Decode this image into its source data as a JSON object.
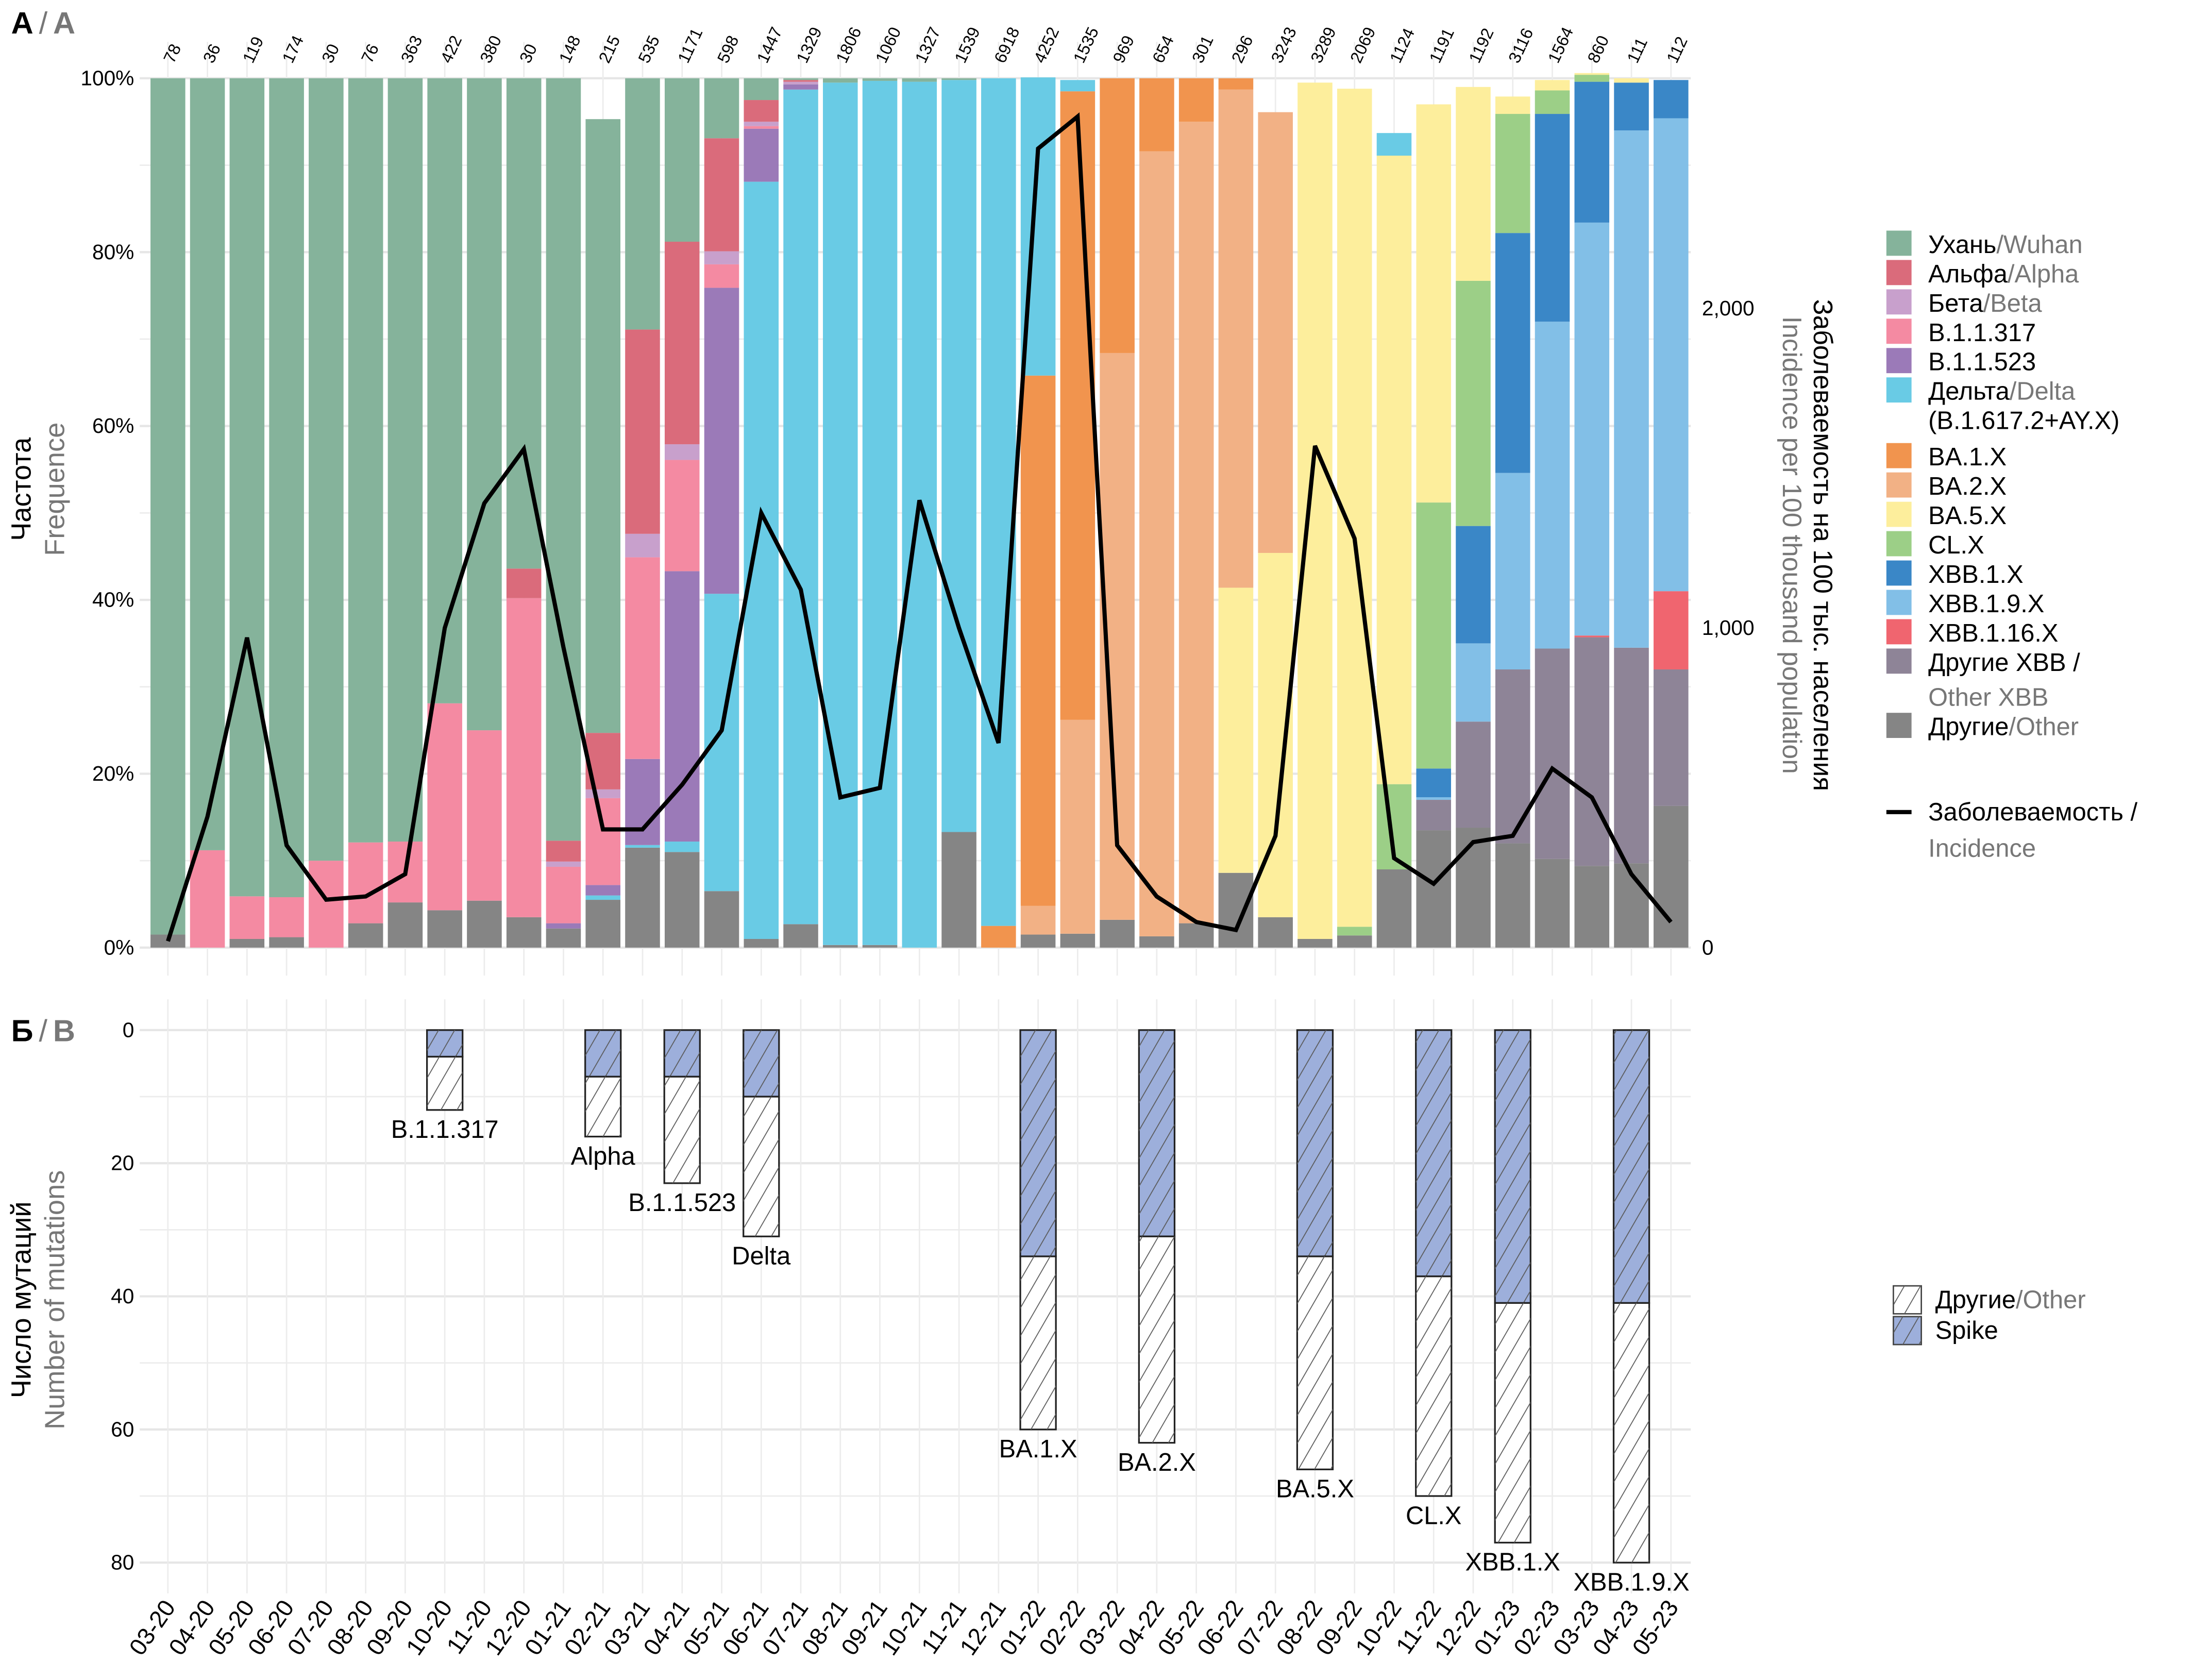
{
  "chart_data": [
    {
      "panel_label": {
        "ru": "А",
        "en": "A"
      },
      "type": "bar",
      "stacked": true,
      "normalized": true,
      "categories": [
        "03-20",
        "04-20",
        "05-20",
        "06-20",
        "07-20",
        "08-20",
        "09-20",
        "10-20",
        "11-20",
        "12-20",
        "01-21",
        "02-21",
        "03-21",
        "04-21",
        "05-21",
        "06-21",
        "07-21",
        "08-21",
        "09-21",
        "10-21",
        "11-21",
        "12-21",
        "01-22",
        "02-22",
        "03-22",
        "04-22",
        "05-22",
        "06-22",
        "07-22",
        "08-22",
        "09-22",
        "10-22",
        "11-22",
        "12-22",
        "01-23",
        "02-23",
        "03-23",
        "04-23",
        "05-23"
      ],
      "sample_counts": [
        78,
        36,
        119,
        174,
        30,
        76,
        363,
        422,
        380,
        30,
        148,
        215,
        535,
        1171,
        598,
        1447,
        1329,
        1806,
        1060,
        1327,
        1539,
        6918,
        4252,
        1535,
        969,
        654,
        301,
        296,
        3243,
        3289,
        2069,
        1124,
        1191,
        1192,
        3116,
        1564,
        860,
        111,
        112
      ],
      "ylabel": {
        "ru": "Частота",
        "en": "Frequence"
      },
      "y_ticks": [
        "0%",
        "20%",
        "40%",
        "60%",
        "80%",
        "100%"
      ],
      "ylim": [
        0,
        100
      ],
      "y2label": {
        "ru": "Заболеваемость на 100 тыс. населения",
        "en": "Incidence per 100 thousand population"
      },
      "y2_ticks": [
        "0",
        "1,000",
        "2,000"
      ],
      "y2lim": [
        0,
        2720
      ],
      "legend_position": "right",
      "series": [
        {
          "key": "other",
          "name_ru": "Другие",
          "name_en": "Other",
          "color": "#858585",
          "values": [
            1.5,
            0,
            1,
            1.2,
            0,
            2.8,
            5.2,
            4.3,
            5.4,
            3.5,
            2.2,
            5.5,
            11.5,
            11,
            6.5,
            1,
            2.7,
            0.3,
            0.3,
            0,
            13.3,
            0,
            1.5,
            1.6,
            3.2,
            1.3,
            2.8,
            8.6,
            3.5,
            1,
            1.4,
            9,
            13.5,
            13.8,
            12,
            10.2,
            9.4,
            9.7,
            16.3
          ]
        },
        {
          "key": "other_xbb",
          "name_ru": "Другие XBB /",
          "name_en": "Other XBB",
          "color": "#8e8497",
          "values": [
            0,
            0,
            0,
            0,
            0,
            0,
            0,
            0,
            0,
            0,
            0,
            0,
            0,
            0,
            0,
            0,
            0,
            0,
            0,
            0,
            0,
            0,
            0,
            0,
            0,
            0,
            0,
            0,
            0,
            0,
            0,
            0,
            3.5,
            12.2,
            20,
            24.2,
            26.3,
            24.8,
            15.7
          ]
        },
        {
          "key": "xbb116",
          "name_ru": "XBB.1.16.X",
          "name_en": "",
          "color": "#f0656f",
          "values": [
            0,
            0,
            0,
            0,
            0,
            0,
            0,
            0,
            0,
            0,
            0,
            0,
            0,
            0,
            0,
            0,
            0,
            0,
            0,
            0,
            0,
            0,
            0,
            0,
            0,
            0,
            0,
            0,
            0,
            0,
            0,
            0,
            0,
            0,
            0,
            0,
            0.2,
            0,
            9
          ]
        },
        {
          "key": "xbb19",
          "name_ru": "XBB.1.9.X",
          "name_en": "",
          "color": "#82bfe7",
          "values": [
            0,
            0,
            0,
            0,
            0,
            0,
            0,
            0,
            0,
            0,
            0,
            0,
            0,
            0,
            0,
            0,
            0,
            0,
            0,
            0,
            0,
            0,
            0,
            0,
            0,
            0,
            0,
            0,
            0,
            0,
            0,
            0,
            0.3,
            9,
            22.6,
            37.6,
            47.5,
            59.5,
            54.4
          ]
        },
        {
          "key": "xbb1",
          "name_ru": "XBB.1.X",
          "name_en": "",
          "color": "#3a87c7",
          "values": [
            0,
            0,
            0,
            0,
            0,
            0,
            0,
            0,
            0,
            0,
            0,
            0,
            0,
            0,
            0,
            0,
            0,
            0,
            0,
            0,
            0,
            0,
            0,
            0,
            0,
            0,
            0,
            0,
            0,
            0,
            0,
            0,
            3.3,
            13.5,
            27.6,
            23.9,
            16.2,
            5.5,
            4.4
          ]
        },
        {
          "key": "cl",
          "name_ru": "CL.X",
          "name_en": "",
          "color": "#9ccf87",
          "values": [
            0,
            0,
            0,
            0,
            0,
            0,
            0,
            0,
            0,
            0,
            0,
            0,
            0,
            0,
            0,
            0,
            0,
            0,
            0,
            0,
            0,
            0,
            0,
            0,
            0,
            0,
            0,
            0,
            0,
            0,
            1,
            9.8,
            30.6,
            28.2,
            13.7,
            2.7,
            0.8,
            0,
            0
          ]
        },
        {
          "key": "ba5",
          "name_ru": "BA.5.X",
          "name_en": "",
          "color": "#fdee9c",
          "values": [
            0,
            0,
            0,
            0,
            0,
            0,
            0,
            0,
            0,
            0,
            0,
            0,
            0,
            0,
            0,
            0,
            0,
            0,
            0,
            0,
            0,
            0,
            0,
            0,
            0,
            0,
            0,
            0,
            0,
            0,
            0,
            0,
            0,
            0,
            0,
            0,
            0,
            0,
            0
          ]
        },
        {
          "key": "ba2",
          "name_ru": "BA.2.X",
          "name_en": "",
          "color": "#f2b185",
          "values": [
            0,
            0,
            0,
            0,
            0,
            0,
            0,
            0,
            0,
            0,
            0,
            0,
            0,
            0,
            0,
            0,
            0,
            0,
            0,
            0,
            0,
            0,
            3.3,
            24.6,
            65.2,
            90.3,
            92.2,
            57.3,
            50.7,
            0,
            0,
            0,
            0,
            0,
            0,
            0,
            0,
            0,
            0
          ]
        },
        {
          "key": "ba1",
          "name_ru": "BA.1.X",
          "name_en": "",
          "color": "#f1944e",
          "values": [
            0,
            0,
            0,
            0,
            0,
            0,
            0,
            0,
            0,
            0,
            0,
            0,
            0,
            0,
            0,
            0,
            0,
            0,
            0,
            0,
            0,
            2.5,
            61,
            72.3,
            31.6,
            8.4,
            5,
            1.3,
            0,
            0,
            0,
            0,
            0,
            0,
            0,
            0,
            0,
            0,
            0
          ]
        },
        {
          "key": "delta",
          "name_ru": "Дельта",
          "name_en": "Delta",
          "extra": "(B.1.617.2+AY.X)",
          "color": "#69cbe5",
          "values": [
            0,
            0,
            0,
            0,
            0,
            0,
            0,
            0,
            0,
            0,
            0,
            0.5,
            0.3,
            1.2,
            34.2,
            87.1,
            96,
            99.2,
            99.4,
            99.6,
            86.5,
            97.5,
            34.3,
            1.3,
            0,
            0,
            0,
            0,
            0,
            0,
            0,
            2.6,
            0,
            0,
            0,
            0,
            0,
            0,
            0
          ]
        },
        {
          "key": "b11523",
          "name_ru": "B.1.1.523",
          "name_en": "",
          "color": "#9b7ab8",
          "values": [
            0,
            0,
            0,
            0,
            0,
            0,
            0,
            0,
            0,
            0,
            0.6,
            1.2,
            9.9,
            31.1,
            35.2,
            6.1,
            0.6,
            0,
            0,
            0,
            0,
            0,
            0,
            0,
            0,
            0,
            0,
            0,
            0,
            0,
            0,
            0,
            0,
            0,
            0,
            0,
            0,
            0,
            0
          ]
        },
        {
          "key": "b11317",
          "name_ru": "B.1.1.317",
          "name_en": "",
          "color": "#f48aa2",
          "values": [
            0,
            11.2,
            4.9,
            4.6,
            10,
            9.3,
            7,
            23.8,
            19.6,
            36.7,
            6.5,
            10,
            23.2,
            12.8,
            2.7,
            0.3,
            0,
            0,
            0,
            0,
            0,
            0,
            0,
            0,
            0,
            0,
            0,
            0,
            0,
            0,
            0,
            0,
            0,
            0,
            0,
            0,
            0,
            0,
            0
          ]
        },
        {
          "key": "beta",
          "name_ru": "Бета",
          "name_en": "Beta",
          "color": "#c8a0cc",
          "values": [
            0,
            0,
            0,
            0,
            0,
            0,
            0,
            0,
            0,
            0,
            0.6,
            1,
            2.7,
            1.8,
            1.5,
            0.5,
            0.3,
            0,
            0,
            0,
            0,
            0,
            0,
            0,
            0,
            0,
            0,
            0,
            0,
            0,
            0,
            0,
            0,
            0,
            0,
            0,
            0,
            0,
            0
          ]
        },
        {
          "key": "alpha",
          "name_ru": "Альфа",
          "name_en": "Alpha",
          "color": "#da6b7b",
          "values": [
            0,
            0,
            0,
            0,
            0,
            0,
            0,
            0,
            0,
            3.4,
            2.4,
            6.5,
            23.5,
            23.3,
            13,
            2.5,
            0.2,
            0,
            0,
            0,
            0,
            0,
            0,
            0,
            0,
            0,
            0,
            0,
            0,
            0,
            0,
            0,
            0,
            0,
            0,
            0,
            0,
            0,
            0
          ]
        },
        {
          "key": "wuhan",
          "name_ru": "Ухань",
          "name_en": "Wuhan",
          "color": "#85b39b",
          "values": [
            98.5,
            88.8,
            94.1,
            94.2,
            90,
            87.9,
            87.8,
            71.9,
            75,
            56.4,
            87.7,
            70.6,
            28.9,
            18.8,
            6.9,
            2.5,
            0.2,
            0.5,
            0.3,
            0.4,
            0.2,
            0,
            0,
            0,
            0,
            0,
            0,
            0,
            0,
            0,
            0,
            0,
            0,
            0,
            0,
            0,
            0,
            0,
            0
          ]
        }
      ],
      "ba5_values_note_free": true,
      "ba5_values": [
        0,
        0,
        0,
        0,
        0,
        0,
        0,
        0,
        0,
        0,
        0,
        0,
        0,
        0,
        0,
        0,
        0,
        0,
        0,
        0,
        0,
        0,
        0,
        0,
        0,
        0,
        0,
        32.8,
        41.9,
        98.5,
        96.4,
        72.3,
        45.8,
        22.3,
        2,
        1.2,
        0.2,
        0.5,
        0
      ],
      "incidence": {
        "name_ru": "Заболеваемость /",
        "name_en": "Incidence",
        "color": "#000000",
        "values": [
          20,
          410,
          970,
          320,
          150,
          160,
          230,
          1000,
          1390,
          1560,
          940,
          370,
          370,
          510,
          680,
          1360,
          1120,
          470,
          500,
          1400,
          1000,
          640,
          2500,
          2600,
          320,
          160,
          80,
          55,
          350,
          1570,
          1280,
          280,
          200,
          330,
          350,
          560,
          470,
          230,
          80
        ]
      }
    },
    {
      "panel_label": {
        "ru": "Б",
        "en": "B"
      },
      "type": "bar",
      "stacked": true,
      "orientation": "downward",
      "ylabel": {
        "ru": "Число мутаций",
        "en": "Number of mutations"
      },
      "y_ticks": [
        "0",
        "20",
        "40",
        "60",
        "80"
      ],
      "ylim": [
        0,
        85
      ],
      "legend_position": "right",
      "legend": [
        {
          "key": "other",
          "name_ru": "Другие",
          "name_en": "Other",
          "color": "#ffffff",
          "pattern": "hatch"
        },
        {
          "key": "spike",
          "name_ru": "Spike",
          "name_en": "",
          "color": "#9dafdb",
          "pattern": "hatch"
        }
      ],
      "bars": [
        {
          "label": "B.1.1.317",
          "category": "10-20",
          "spike": 4,
          "total": 12
        },
        {
          "label": "Alpha",
          "category": "02-21",
          "spike": 7,
          "total": 16
        },
        {
          "label": "B.1.1.523",
          "category": "04-21",
          "spike": 7,
          "total": 23
        },
        {
          "label": "Delta",
          "category": "06-21",
          "spike": 10,
          "total": 31
        },
        {
          "label": "BA.1.X",
          "category": "01-22",
          "spike": 34,
          "total": 60
        },
        {
          "label": "BA.2.X",
          "category": "04-22",
          "spike": 31,
          "total": 62
        },
        {
          "label": "BA.5.X",
          "category": "08-22",
          "spike": 34,
          "total": 66
        },
        {
          "label": "CL.X",
          "category": "11-22",
          "spike": 37,
          "total": 70
        },
        {
          "label": "XBB.1.X",
          "category": "01-23",
          "spike": 41,
          "total": 77
        },
        {
          "label": "XBB.1.9.X",
          "category": "04-23",
          "spike": 41,
          "total": 80
        }
      ]
    }
  ]
}
